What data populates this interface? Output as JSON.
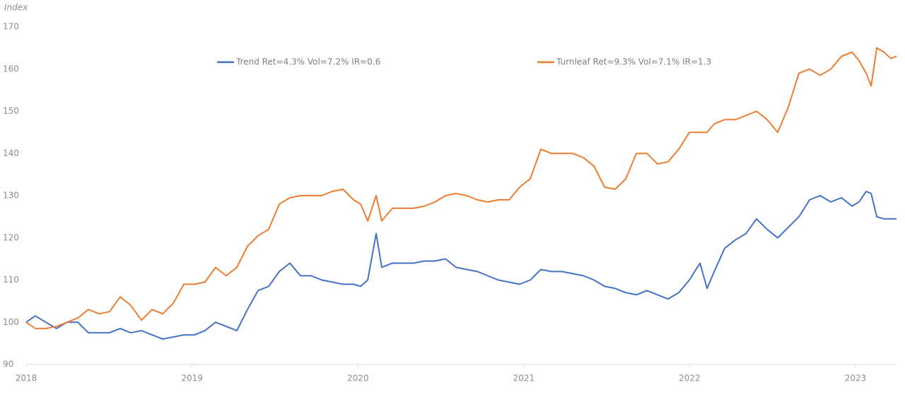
{
  "chart_data": {
    "type": "line",
    "y_label": "Index",
    "xlim": [
      2018,
      2023.247
    ],
    "xticks": [
      2018,
      2019,
      2020,
      2021,
      2022,
      2023
    ],
    "ylim": [
      90,
      170
    ],
    "yticks": [
      90,
      100,
      110,
      120,
      130,
      140,
      150,
      160,
      170
    ],
    "grid": false,
    "x": [
      2018.0,
      2018.055,
      2018.119,
      2018.183,
      2018.247,
      2018.311,
      2018.375,
      2018.439,
      2018.503,
      2018.567,
      2018.631,
      2018.695,
      2018.759,
      2018.823,
      2018.887,
      2018.951,
      2019.015,
      2019.078,
      2019.142,
      2019.206,
      2019.27,
      2019.334,
      2019.398,
      2019.462,
      2019.526,
      2019.59,
      2019.654,
      2019.718,
      2019.782,
      2019.846,
      2019.91,
      2019.974,
      2020.016,
      2020.059,
      2020.11,
      2020.144,
      2020.208,
      2020.272,
      2020.336,
      2020.4,
      2020.464,
      2020.528,
      2020.592,
      2020.656,
      2020.72,
      2020.783,
      2020.847,
      2020.911,
      2020.975,
      2021.039,
      2021.103,
      2021.167,
      2021.231,
      2021.295,
      2021.359,
      2021.423,
      2021.487,
      2021.551,
      2021.615,
      2021.679,
      2021.743,
      2021.806,
      2021.87,
      2021.934,
      2021.998,
      2022.062,
      2022.105,
      2022.148,
      2022.211,
      2022.275,
      2022.339,
      2022.403,
      2022.467,
      2022.531,
      2022.595,
      2022.659,
      2022.723,
      2022.787,
      2022.851,
      2022.915,
      2022.979,
      2023.021,
      2023.064,
      2023.094,
      2023.128,
      2023.171,
      2023.213,
      2023.247
    ],
    "series": [
      {
        "name": "Trend Ret=4.3% Vol=7.2% IR=0.6",
        "color": "#4472c4",
        "values": [
          100,
          101.5,
          100,
          98.5,
          100,
          100,
          97.5,
          97.5,
          97.5,
          98.5,
          97.5,
          98,
          97,
          96,
          96.5,
          97,
          97,
          98,
          100,
          99,
          98,
          103,
          107.5,
          108.5,
          112,
          114,
          111,
          111,
          110,
          109.5,
          109,
          109,
          108.5,
          110,
          121,
          113,
          114,
          114,
          114,
          114.5,
          114.5,
          115,
          113,
          112.5,
          112,
          111,
          110,
          109.5,
          109,
          110,
          112.5,
          112,
          112,
          111.5,
          111,
          110,
          108.5,
          108,
          107,
          106.5,
          107.5,
          106.5,
          105.5,
          107,
          110,
          114,
          108,
          112,
          117.5,
          119.5,
          121,
          124.5,
          122,
          120,
          122.5,
          125,
          129,
          130,
          128.5,
          129.5,
          127.5,
          128.5,
          131,
          130.5,
          125,
          124.5,
          124.5,
          124.5
        ]
      },
      {
        "name": "Turnleaf Ret=9.3% Vol=7.1% IR=1.3",
        "color": "#ed7d31",
        "values": [
          100,
          98.5,
          98.5,
          99,
          100,
          101,
          103,
          102,
          102.5,
          106,
          104,
          100.5,
          103,
          102,
          104.5,
          109,
          109,
          109.5,
          113,
          111,
          113,
          118,
          120.5,
          122,
          128,
          129.5,
          130,
          130,
          130,
          131,
          131.5,
          129,
          128,
          124,
          130,
          124,
          127,
          127,
          127,
          127.5,
          128.5,
          130,
          130.5,
          130,
          129,
          128.5,
          129,
          129,
          132,
          134,
          141,
          140,
          140,
          140,
          139,
          137,
          132,
          131.5,
          134,
          140,
          140,
          137.5,
          138,
          141,
          145,
          145,
          145,
          147,
          148,
          148,
          149,
          150,
          148,
          145,
          151,
          159,
          160,
          158.5,
          160,
          163,
          164,
          162,
          159,
          156,
          165,
          164,
          162.5,
          163
        ]
      }
    ]
  }
}
